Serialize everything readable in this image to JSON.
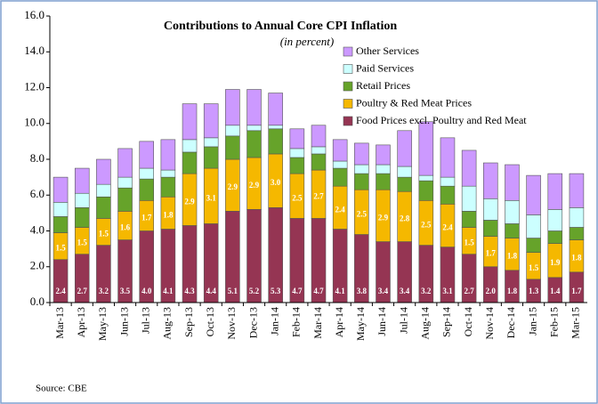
{
  "chart_data": {
    "type": "stacked-bar",
    "title": "Contributions to Annual Core CPI Inflation",
    "subtitle": "(in percent)",
    "source": "Source: CBE",
    "categories": [
      "Mar-13",
      "Apr-13",
      "May-13",
      "Jun-13",
      "Jul-13",
      "Aug-13",
      "Sep-13",
      "Oct-13",
      "Nov-13",
      "Dec-13",
      "Jan-14",
      "Feb-14",
      "Mar-14",
      "Apr-14",
      "May-14",
      "Jun-14",
      "Jul-14",
      "Aug-14",
      "Sep-14",
      "Oct-14",
      "Nov-14",
      "Dec-14",
      "Jan-15",
      "Feb-15",
      "Mar-15"
    ],
    "series": [
      {
        "name": "Food Prices excl. Poultry and Red Meat",
        "color": "#953553",
        "values": [
          2.4,
          2.7,
          3.2,
          3.5,
          4.0,
          4.1,
          4.3,
          4.4,
          5.1,
          5.2,
          5.3,
          4.7,
          4.7,
          4.1,
          3.8,
          3.4,
          3.4,
          3.2,
          3.1,
          2.7,
          2.0,
          1.8,
          1.3,
          1.4,
          1.7
        ],
        "value_labels": [
          "2.4",
          "2.7",
          "3.2",
          "3.5",
          "4.0",
          "4.1",
          "4.3",
          "4.4",
          "5.1",
          "5.2",
          "5.3",
          "4.7",
          "4.7",
          "4.1",
          "3.8",
          "3.4",
          "3.4",
          "3.2",
          "3.1",
          "2.7",
          "2.0",
          "1.8",
          "1.3",
          "1.4",
          "1.7"
        ]
      },
      {
        "name": "Poultry & Red Meat Prices",
        "color": "#f5b800",
        "values": [
          1.5,
          1.5,
          1.5,
          1.6,
          1.7,
          1.8,
          2.9,
          3.1,
          2.9,
          2.9,
          3.0,
          2.5,
          2.7,
          2.4,
          2.5,
          2.9,
          2.8,
          2.5,
          2.4,
          1.5,
          1.7,
          1.8,
          1.5,
          1.9,
          1.8
        ],
        "value_labels": [
          "1.5",
          "1.5",
          "1.5",
          "1.6",
          "1.7",
          "1.8",
          "2.9",
          "3.1",
          "2.9",
          "2.9",
          "3.0",
          "2.5",
          "2.7",
          "2.4",
          "2.5",
          "2.9",
          "2.8",
          "2.5",
          "2.4",
          "1.5",
          "1.7",
          "1.8",
          "1.5",
          "1.9",
          "1.8"
        ]
      },
      {
        "name": "Retail Prices",
        "color": "#66a32a",
        "values": [
          0.9,
          1.1,
          1.2,
          1.3,
          1.2,
          1.1,
          1.2,
          1.2,
          1.3,
          1.5,
          1.4,
          0.9,
          0.9,
          1.0,
          0.9,
          0.9,
          0.8,
          1.1,
          1.0,
          0.9,
          0.9,
          0.8,
          0.8,
          0.7,
          0.7
        ]
      },
      {
        "name": "Paid Services",
        "color": "#ccffff",
        "values": [
          0.8,
          0.8,
          0.7,
          0.6,
          0.6,
          0.4,
          0.7,
          0.5,
          0.6,
          0.3,
          0.2,
          0.5,
          0.4,
          0.4,
          0.5,
          0.5,
          0.6,
          0.3,
          0.5,
          1.4,
          1.2,
          1.3,
          1.3,
          1.2,
          1.1
        ]
      },
      {
        "name": "Other Services",
        "color": "#cc99ff",
        "values": [
          1.4,
          1.4,
          1.4,
          1.6,
          1.5,
          1.7,
          2.0,
          1.9,
          2.0,
          2.0,
          1.8,
          1.1,
          1.2,
          1.2,
          1.2,
          1.1,
          2.0,
          3.0,
          2.2,
          2.0,
          2.0,
          2.0,
          2.2,
          2.0,
          1.9
        ]
      }
    ],
    "ylim": [
      0,
      16
    ],
    "yticks": [
      {
        "value": 0,
        "label": "0.0"
      },
      {
        "value": 2,
        "label": "2.0"
      },
      {
        "value": 4,
        "label": "4.0"
      },
      {
        "value": 6,
        "label": "6.0"
      },
      {
        "value": 8,
        "label": "8.0"
      },
      {
        "value": 10,
        "label": "10.0"
      },
      {
        "value": 12,
        "label": "12.0"
      },
      {
        "value": 14,
        "label": "14.0"
      },
      {
        "value": 16,
        "label": "16.0"
      }
    ]
  }
}
